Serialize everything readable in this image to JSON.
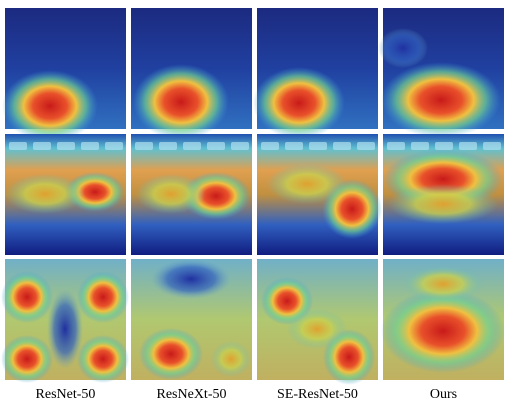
{
  "figure": {
    "columns": [
      "ResNet-50",
      "ResNeXt-50",
      "SE-ResNet-50",
      "Ours"
    ]
  }
}
